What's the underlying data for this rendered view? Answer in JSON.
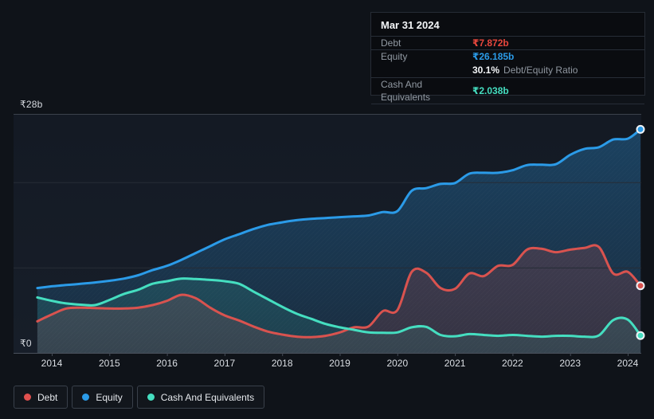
{
  "tooltip": {
    "title": "Mar 31 2024",
    "rows": [
      {
        "label": "Debt",
        "value": "₹7.872b",
        "color": "#e8473d"
      },
      {
        "label": "Equity",
        "value": "₹26.185b",
        "color": "#2b9be8"
      },
      {
        "label": "Cash And Equivalents",
        "value": "₹2.038b",
        "color": "#45dec0"
      }
    ],
    "ratio_value": "30.1%",
    "ratio_label": "Debt/Equity Ratio"
  },
  "axis": {
    "y_top": "₹28b",
    "y_zero": "₹0"
  },
  "legend": {
    "items": [
      {
        "label": "Debt",
        "color": "#e0504e"
      },
      {
        "label": "Equity",
        "color": "#2b9be8"
      },
      {
        "label": "Cash And Equivalents",
        "color": "#45dec0"
      }
    ]
  },
  "chart_data": {
    "type": "area",
    "title": "",
    "xlabel": "",
    "ylabel": "₹ billions",
    "ylim": [
      0,
      28
    ],
    "y_gridlines": [
      0,
      10,
      20,
      28
    ],
    "x_ticks": [
      2014,
      2015,
      2016,
      2017,
      2018,
      2019,
      2020,
      2021,
      2022,
      2023,
      2024
    ],
    "grid": true,
    "legend_position": "bottom-left",
    "x": [
      2013.75,
      2014,
      2014.25,
      2014.5,
      2014.75,
      2015,
      2015.25,
      2015.5,
      2015.75,
      2016,
      2016.25,
      2016.5,
      2016.75,
      2017,
      2017.25,
      2017.5,
      2017.75,
      2018,
      2018.25,
      2018.5,
      2018.75,
      2019,
      2019.25,
      2019.5,
      2019.75,
      2020,
      2020.25,
      2020.5,
      2020.75,
      2021,
      2021.25,
      2021.5,
      2021.75,
      2022,
      2022.25,
      2022.5,
      2022.75,
      2023,
      2023.25,
      2023.5,
      2023.75,
      2024,
      2024.25
    ],
    "series": [
      {
        "name": "Debt",
        "color": "#d9534f",
        "values": [
          3.7,
          4.5,
          5.2,
          5.3,
          5.25,
          5.2,
          5.2,
          5.3,
          5.6,
          6.1,
          6.8,
          6.4,
          5.3,
          4.4,
          3.8,
          3.1,
          2.5,
          2.15,
          1.9,
          1.85,
          2.0,
          2.4,
          3.0,
          3.1,
          4.9,
          5.0,
          9.5,
          9.4,
          7.6,
          7.5,
          9.3,
          9.0,
          10.2,
          10.3,
          12.1,
          12.2,
          11.8,
          12.1,
          12.3,
          12.4,
          9.3,
          9.5,
          7.872
        ]
      },
      {
        "name": "Equity",
        "color": "#2b9be8",
        "values": [
          7.6,
          7.8,
          7.95,
          8.1,
          8.25,
          8.45,
          8.7,
          9.1,
          9.7,
          10.2,
          10.9,
          11.7,
          12.5,
          13.3,
          13.9,
          14.5,
          15.0,
          15.3,
          15.55,
          15.7,
          15.8,
          15.9,
          16.0,
          16.1,
          16.5,
          16.6,
          19.0,
          19.3,
          19.8,
          19.9,
          21.0,
          21.1,
          21.1,
          21.4,
          22.0,
          22.05,
          22.1,
          23.2,
          23.9,
          24.1,
          25.0,
          25.1,
          26.185
        ]
      },
      {
        "name": "Cash And Equivalents",
        "color": "#45dec0",
        "values": [
          6.5,
          6.1,
          5.8,
          5.65,
          5.6,
          6.2,
          6.9,
          7.4,
          8.1,
          8.4,
          8.7,
          8.65,
          8.55,
          8.4,
          8.1,
          7.2,
          6.3,
          5.4,
          4.6,
          4.0,
          3.4,
          3.0,
          2.7,
          2.4,
          2.35,
          2.4,
          3.0,
          3.05,
          2.1,
          1.95,
          2.2,
          2.1,
          2.0,
          2.1,
          2.0,
          1.9,
          2.0,
          2.0,
          1.9,
          2.05,
          3.85,
          3.9,
          2.038
        ]
      }
    ],
    "end_values": {
      "Debt": "₹7.872b",
      "Equity": "₹26.185b",
      "Cash And Equivalents": "₹2.038b"
    }
  }
}
